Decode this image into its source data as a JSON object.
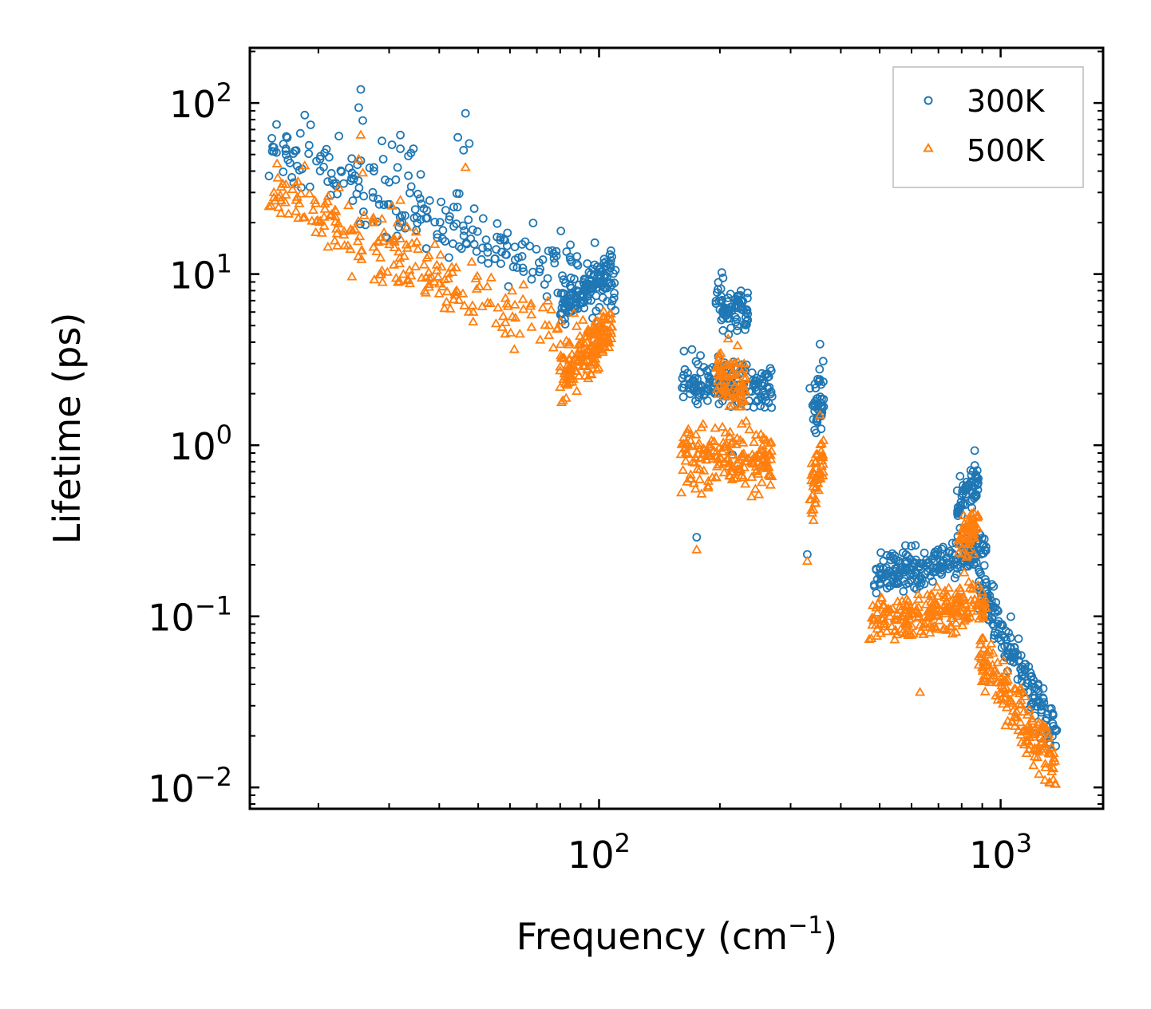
{
  "chart_data": {
    "type": "scatter",
    "title": "",
    "xlabel": "Frequency (cm",
    "xlabel_sup": "−1",
    "xlabel_end": ")",
    "ylabel": "Lifetime (ps)",
    "xscale": "log",
    "yscale": "log",
    "xlim": [
      13.5,
      1800
    ],
    "ylim": [
      0.0075,
      210
    ],
    "legend_position": "top-right",
    "x_ticks": [
      {
        "value": 100,
        "base": "10",
        "exp": "2"
      },
      {
        "value": 1000,
        "base": "10",
        "exp": "3"
      }
    ],
    "y_ticks": [
      {
        "value": 100,
        "base": "10",
        "exp": "2"
      },
      {
        "value": 10,
        "base": "10",
        "exp": "1"
      },
      {
        "value": 1,
        "base": "10",
        "exp": "0"
      },
      {
        "value": 0.1,
        "base": "10",
        "exp": "−1"
      },
      {
        "value": 0.01,
        "base": "10",
        "exp": "−2"
      }
    ],
    "series": [
      {
        "name": "300K",
        "marker": "circle",
        "color": "#1f77b4",
        "clusters": [
          {
            "x_range": [
              15,
              110
            ],
            "y_start": 52,
            "y_end": 8,
            "spread": 0.35,
            "count": 240
          },
          {
            "x_range": [
              80,
              108
            ],
            "y_start": 6,
            "y_end": 11,
            "spread": 0.15,
            "count": 120
          },
          {
            "x_range": [
              160,
              270
            ],
            "y_start": 2.4,
            "y_end": 2.2,
            "spread": 0.25,
            "count": 170
          },
          {
            "x_range": [
              195,
              235
            ],
            "y_start": 7,
            "y_end": 6,
            "spread": 0.25,
            "count": 80
          },
          {
            "x_range": [
              340,
              365
            ],
            "y_start": 1.5,
            "y_end": 2.3,
            "spread": 0.3,
            "count": 40
          },
          {
            "x_range": [
              480,
              920
            ],
            "y_start": 0.17,
            "y_end": 0.25,
            "spread": 0.2,
            "count": 220
          },
          {
            "x_range": [
              780,
              880
            ],
            "y_start": 0.45,
            "y_end": 0.6,
            "spread": 0.2,
            "count": 60
          },
          {
            "x_range": [
              880,
              1380
            ],
            "y_start": 0.15,
            "y_end": 0.02,
            "spread": 0.25,
            "count": 170
          }
        ],
        "points": [
          {
            "x": 15.5,
            "y": 55
          },
          {
            "x": 15.5,
            "y": 52
          },
          {
            "x": 16.6,
            "y": 54
          },
          {
            "x": 18.5,
            "y": 85
          },
          {
            "x": 22.5,
            "y": 64
          },
          {
            "x": 25.5,
            "y": 120
          },
          {
            "x": 25.2,
            "y": 94
          },
          {
            "x": 25.8,
            "y": 79
          },
          {
            "x": 25.5,
            "y": 46
          },
          {
            "x": 27.5,
            "y": 42
          },
          {
            "x": 27.5,
            "y": 40
          },
          {
            "x": 28.8,
            "y": 60
          },
          {
            "x": 29,
            "y": 47
          },
          {
            "x": 30.5,
            "y": 57
          },
          {
            "x": 31.5,
            "y": 42
          },
          {
            "x": 32,
            "y": 65
          },
          {
            "x": 32,
            "y": 54
          },
          {
            "x": 33.5,
            "y": 49
          },
          {
            "x": 34,
            "y": 51
          },
          {
            "x": 34.5,
            "y": 54
          },
          {
            "x": 46.5,
            "y": 87
          },
          {
            "x": 44.5,
            "y": 63
          },
          {
            "x": 46,
            "y": 53
          },
          {
            "x": 47.5,
            "y": 58
          },
          {
            "x": 215,
            "y": 0.88
          },
          {
            "x": 175,
            "y": 0.29
          },
          {
            "x": 330,
            "y": 0.23
          },
          {
            "x": 355,
            "y": 3.9
          },
          {
            "x": 335,
            "y": 2.15
          },
          {
            "x": 862,
            "y": 0.93
          }
        ]
      },
      {
        "name": "500K",
        "marker": "triangle",
        "color": "#ff7f0e",
        "clusters": [
          {
            "x_range": [
              15,
              100
            ],
            "y_start": 29,
            "y_end": 3.2,
            "spread": 0.35,
            "count": 240
          },
          {
            "x_range": [
              80,
              108
            ],
            "y_start": 2.5,
            "y_end": 5,
            "spread": 0.25,
            "count": 140
          },
          {
            "x_range": [
              160,
              270
            ],
            "y_start": 0.85,
            "y_end": 0.8,
            "spread": 0.3,
            "count": 180
          },
          {
            "x_range": [
              195,
              235
            ],
            "y_start": 2.6,
            "y_end": 2.2,
            "spread": 0.3,
            "count": 80
          },
          {
            "x_range": [
              335,
              362
            ],
            "y_start": 0.5,
            "y_end": 0.8,
            "spread": 0.3,
            "count": 50
          },
          {
            "x_range": [
              470,
              920
            ],
            "y_start": 0.09,
            "y_end": 0.12,
            "spread": 0.22,
            "count": 230
          },
          {
            "x_range": [
              780,
              880
            ],
            "y_start": 0.25,
            "y_end": 0.35,
            "spread": 0.25,
            "count": 60
          },
          {
            "x_range": [
              880,
              1380
            ],
            "y_start": 0.06,
            "y_end": 0.013,
            "spread": 0.28,
            "count": 170
          }
        ],
        "points": [
          {
            "x": 15.5,
            "y": 30
          },
          {
            "x": 15.5,
            "y": 28
          },
          {
            "x": 16.6,
            "y": 29
          },
          {
            "x": 18.5,
            "y": 43
          },
          {
            "x": 22.5,
            "y": 32
          },
          {
            "x": 25.5,
            "y": 65
          },
          {
            "x": 25.2,
            "y": 47
          },
          {
            "x": 25.8,
            "y": 39
          },
          {
            "x": 26,
            "y": 22
          },
          {
            "x": 27.5,
            "y": 21
          },
          {
            "x": 27.5,
            "y": 20
          },
          {
            "x": 28.8,
            "y": 21
          },
          {
            "x": 30.5,
            "y": 25
          },
          {
            "x": 31.5,
            "y": 20
          },
          {
            "x": 32,
            "y": 27
          },
          {
            "x": 46.5,
            "y": 42
          },
          {
            "x": 175,
            "y": 0.245
          },
          {
            "x": 215,
            "y": 0.75
          },
          {
            "x": 330,
            "y": 0.21
          },
          {
            "x": 355,
            "y": 1.5
          },
          {
            "x": 630,
            "y": 0.036
          }
        ]
      }
    ]
  }
}
